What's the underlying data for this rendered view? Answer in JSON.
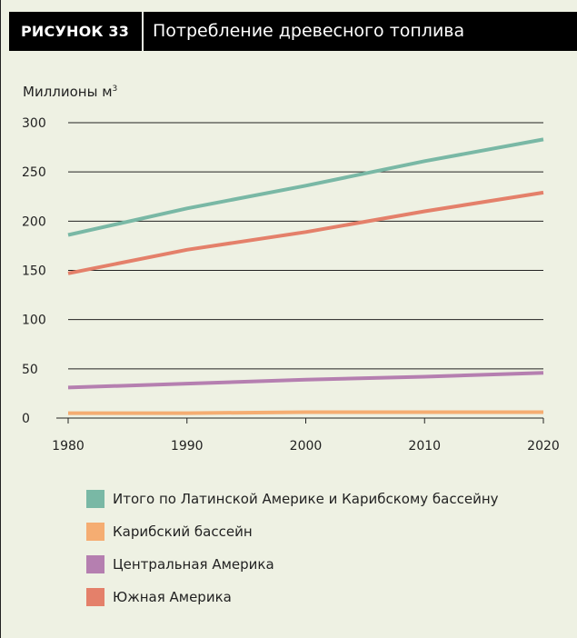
{
  "header": {
    "figure_label": "РИСУНОК 33",
    "title": "Потребление древесного топлива"
  },
  "chart_data": {
    "type": "line",
    "ylabel": "Миллионы м",
    "ylabel_superscript": "3",
    "x": [
      1980,
      1990,
      2000,
      2010,
      2020
    ],
    "x_ticks": [
      "1980",
      "1990",
      "2000",
      "2010",
      "2020"
    ],
    "y_ticks": [
      "0",
      "50",
      "100",
      "150",
      "200",
      "250",
      "300"
    ],
    "ylim": [
      0,
      300
    ],
    "xlim": [
      1980,
      2020
    ],
    "grid": true,
    "legend_position": "bottom",
    "series": [
      {
        "name": "Итого по Латинской Америке и Карибскому бассейну",
        "color": "#79b8a5",
        "values": [
          186,
          213,
          236,
          261,
          283
        ]
      },
      {
        "name": "Карибский бассейн",
        "color": "#f5ad72",
        "values": [
          5,
          5,
          6,
          6,
          6
        ]
      },
      {
        "name": "Центральная Америка",
        "color": "#b57fb0",
        "values": [
          31,
          35,
          39,
          42,
          46
        ]
      },
      {
        "name": "Южная Америка",
        "color": "#e4806a",
        "values": [
          147,
          171,
          189,
          210,
          229
        ]
      }
    ]
  }
}
